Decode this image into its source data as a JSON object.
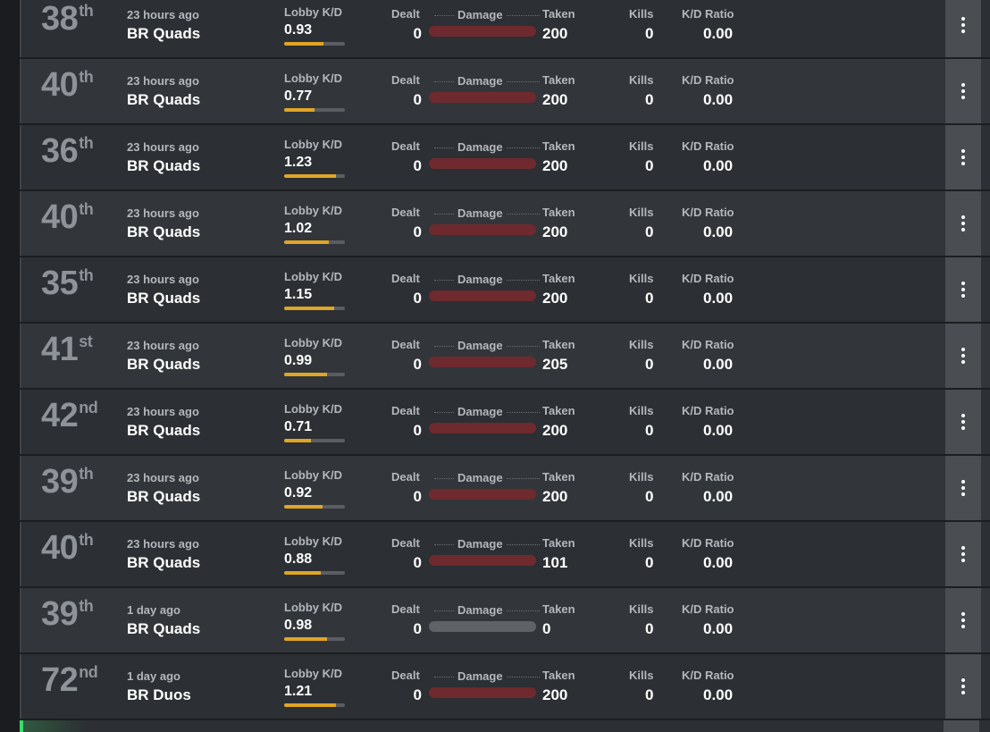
{
  "labels": {
    "lobby_kd": "Lobby K/D",
    "dealt": "Dealt",
    "damage": "Damage",
    "taken": "Taken",
    "kills": "Kills",
    "kd_ratio": "K/D Ratio"
  },
  "colors": {
    "kd_bar_fill": "#e0a526",
    "damage_bar": "#6e2a2e",
    "damage_bar_empty": "#5f6368",
    "bottom_accent": "#3cdc6a"
  },
  "icons": {
    "menu": "more-vertical-icon"
  },
  "matches": [
    {
      "placement": "38",
      "suffix": "th",
      "time": "23 hours ago",
      "mode": "BR Quads",
      "lobby_kd": "0.93",
      "kd_fill": 0.64,
      "dealt": "0",
      "taken": "200",
      "kills": "0",
      "kd_ratio": "0.00",
      "damage_bar": "taken"
    },
    {
      "placement": "40",
      "suffix": "th",
      "time": "23 hours ago",
      "mode": "BR Quads",
      "lobby_kd": "0.77",
      "kd_fill": 0.5,
      "dealt": "0",
      "taken": "200",
      "kills": "0",
      "kd_ratio": "0.00",
      "damage_bar": "taken"
    },
    {
      "placement": "36",
      "suffix": "th",
      "time": "23 hours ago",
      "mode": "BR Quads",
      "lobby_kd": "1.23",
      "kd_fill": 0.85,
      "dealt": "0",
      "taken": "200",
      "kills": "0",
      "kd_ratio": "0.00",
      "damage_bar": "taken"
    },
    {
      "placement": "40",
      "suffix": "th",
      "time": "23 hours ago",
      "mode": "BR Quads",
      "lobby_kd": "1.02",
      "kd_fill": 0.73,
      "dealt": "0",
      "taken": "200",
      "kills": "0",
      "kd_ratio": "0.00",
      "damage_bar": "taken"
    },
    {
      "placement": "35",
      "suffix": "th",
      "time": "23 hours ago",
      "mode": "BR Quads",
      "lobby_kd": "1.15",
      "kd_fill": 0.82,
      "dealt": "0",
      "taken": "200",
      "kills": "0",
      "kd_ratio": "0.00",
      "damage_bar": "taken"
    },
    {
      "placement": "41",
      "suffix": "st",
      "time": "23 hours ago",
      "mode": "BR Quads",
      "lobby_kd": "0.99",
      "kd_fill": 0.7,
      "dealt": "0",
      "taken": "205",
      "kills": "0",
      "kd_ratio": "0.00",
      "damage_bar": "taken"
    },
    {
      "placement": "42",
      "suffix": "nd",
      "time": "23 hours ago",
      "mode": "BR Quads",
      "lobby_kd": "0.71",
      "kd_fill": 0.44,
      "dealt": "0",
      "taken": "200",
      "kills": "0",
      "kd_ratio": "0.00",
      "damage_bar": "taken"
    },
    {
      "placement": "39",
      "suffix": "th",
      "time": "23 hours ago",
      "mode": "BR Quads",
      "lobby_kd": "0.92",
      "kd_fill": 0.63,
      "dealt": "0",
      "taken": "200",
      "kills": "0",
      "kd_ratio": "0.00",
      "damage_bar": "taken"
    },
    {
      "placement": "40",
      "suffix": "th",
      "time": "23 hours ago",
      "mode": "BR Quads",
      "lobby_kd": "0.88",
      "kd_fill": 0.6,
      "dealt": "0",
      "taken": "101",
      "kills": "0",
      "kd_ratio": "0.00",
      "damage_bar": "taken"
    },
    {
      "placement": "39",
      "suffix": "th",
      "time": "1 day ago",
      "mode": "BR Quads",
      "lobby_kd": "0.98",
      "kd_fill": 0.7,
      "dealt": "0",
      "taken": "0",
      "kills": "0",
      "kd_ratio": "0.00",
      "damage_bar": "empty"
    },
    {
      "placement": "72",
      "suffix": "nd",
      "time": "1 day ago",
      "mode": "BR Duos",
      "lobby_kd": "1.21",
      "kd_fill": 0.85,
      "dealt": "0",
      "taken": "200",
      "kills": "0",
      "kd_ratio": "0.00",
      "damage_bar": "taken"
    }
  ]
}
